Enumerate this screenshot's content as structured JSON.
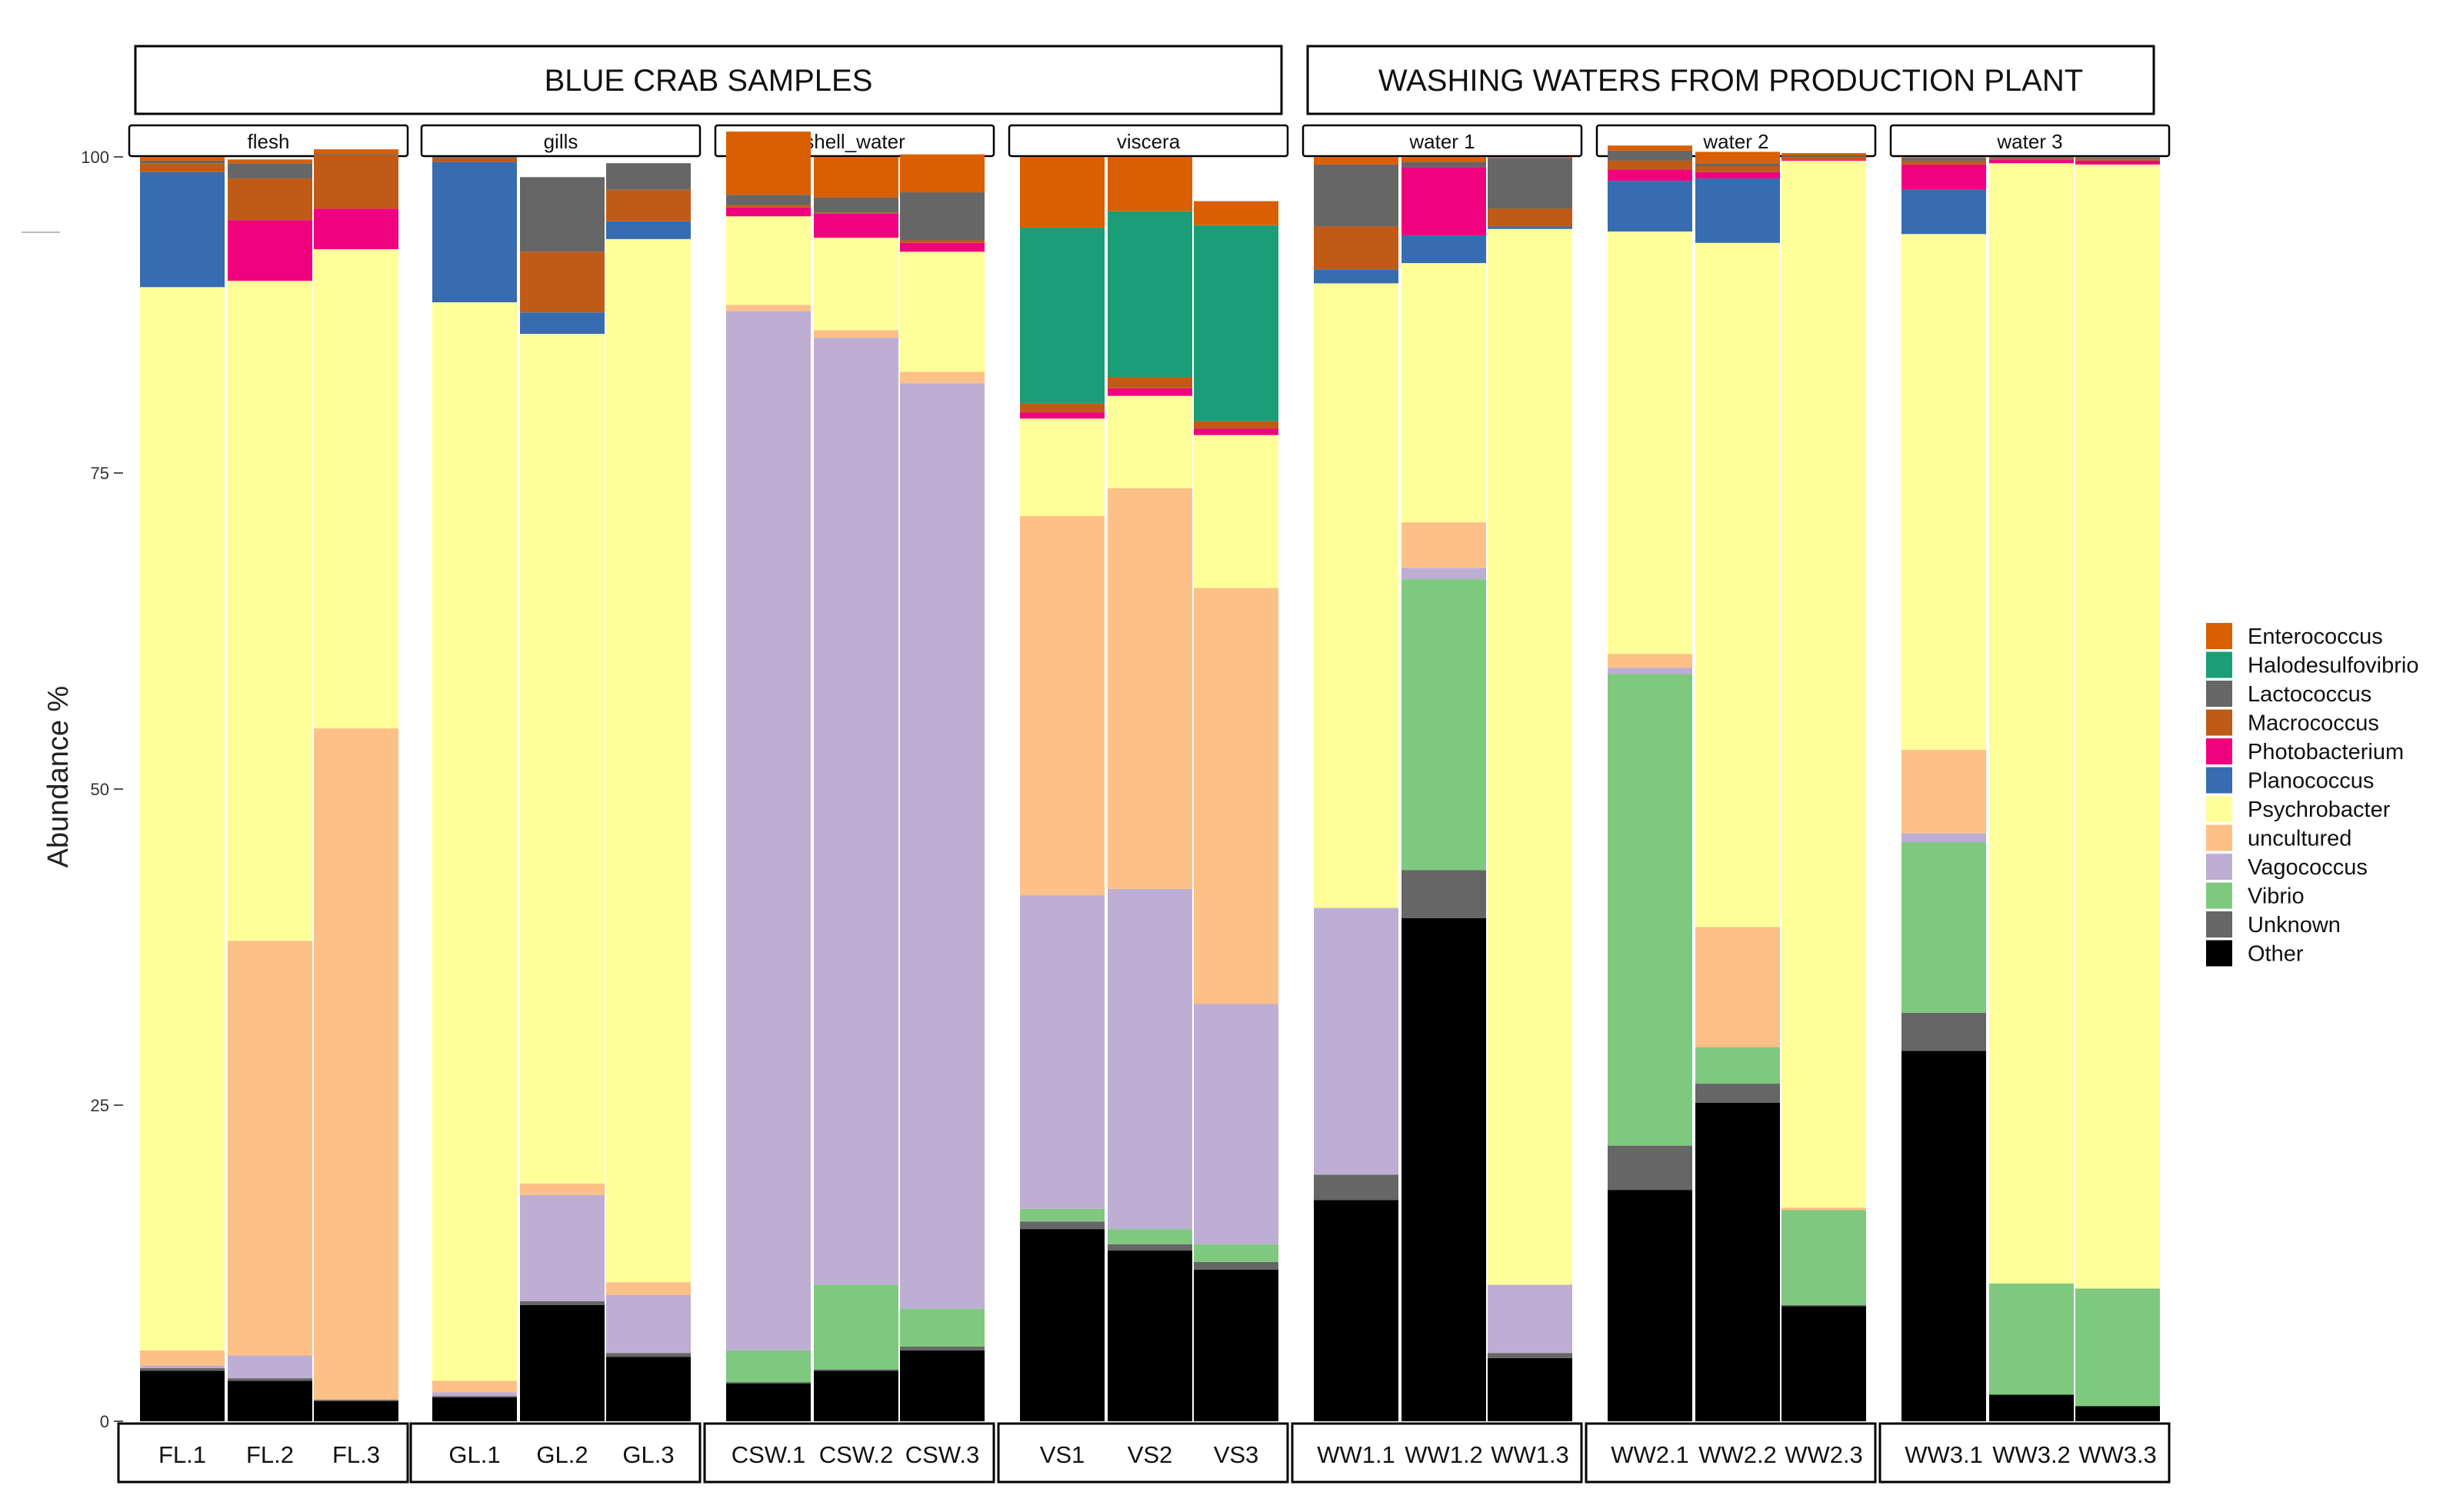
{
  "chart_data": {
    "type": "bar",
    "stacked": true,
    "title": "",
    "xlabel": "",
    "ylabel": "Abundance %",
    "ylim": [
      0,
      100
    ],
    "yticks": [
      0,
      25,
      50,
      75,
      100
    ],
    "groups": [
      {
        "label": "BLUE CRAB  SAMPLES",
        "panels": [
          "flesh",
          "gills",
          "shell_water",
          "viscera"
        ]
      },
      {
        "label": "WASHING WATERS FROM PRODUCTION PLANT",
        "panels": [
          "water 1",
          "water 2",
          "water 3"
        ]
      }
    ],
    "panels": [
      {
        "name": "flesh",
        "samples": [
          "FL.1",
          "FL.2",
          "FL.3"
        ]
      },
      {
        "name": "gills",
        "samples": [
          "GL.1",
          "GL.2",
          "GL.3"
        ]
      },
      {
        "name": "shell_water",
        "samples": [
          "CSW.1",
          "CSW.2",
          "CSW.3"
        ]
      },
      {
        "name": "viscera",
        "samples": [
          "VS1",
          "VS2",
          "VS3"
        ]
      },
      {
        "name": "water 1",
        "samples": [
          "WW1.1",
          "WW1.2",
          "WW1.3"
        ]
      },
      {
        "name": "water 2",
        "samples": [
          "WW2.1",
          "WW2.2",
          "WW2.3"
        ]
      },
      {
        "name": "water 3",
        "samples": [
          "WW3.1",
          "WW3.2",
          "WW3.3"
        ]
      }
    ],
    "categories": [
      "FL.1",
      "FL.2",
      "FL.3",
      "GL.1",
      "GL.2",
      "GL.3",
      "CSW.1",
      "CSW.2",
      "CSW.3",
      "VS1",
      "VS2",
      "VS3",
      "WW1.1",
      "WW1.2",
      "WW1.3",
      "WW2.1",
      "WW2.2",
      "WW2.3",
      "WW3.1",
      "WW3.2",
      "WW3.3"
    ],
    "legend_position": "right",
    "series": [
      {
        "name": "Other",
        "color": "#000000",
        "values": [
          4.0,
          3.2,
          1.6,
          1.9,
          9.2,
          5.1,
          3.0,
          4.0,
          5.6,
          15.2,
          13.5,
          12.0,
          17.5,
          39.8,
          5.0,
          18.3,
          25.2,
          9.1,
          29.3,
          2.1,
          1.2
        ]
      },
      {
        "name": "Unknown",
        "color": "#666666",
        "values": [
          0.2,
          0.2,
          0.1,
          0.1,
          0.3,
          0.3,
          0.1,
          0.1,
          0.3,
          0.6,
          0.5,
          0.6,
          2.0,
          3.8,
          0.4,
          3.5,
          1.5,
          0.1,
          3.0,
          0.0,
          0.0
        ]
      },
      {
        "name": "Vibrio",
        "color": "#7FC97F",
        "values": [
          0,
          0,
          0,
          0,
          0,
          0,
          2.5,
          6.7,
          3.0,
          1.0,
          1.2,
          1.4,
          0,
          23.0,
          0,
          37.3,
          2.9,
          7.5,
          13.5,
          8.8,
          9.3
        ]
      },
      {
        "name": "Vagococcus",
        "color": "#BEAED4",
        "values": [
          0.2,
          1.8,
          0,
          0.3,
          8.4,
          4.6,
          82.2,
          74.9,
          73.2,
          24.8,
          26.9,
          19.0,
          21.1,
          0.9,
          5.4,
          0.5,
          0,
          0,
          0.7,
          0,
          0
        ]
      },
      {
        "name": "uncultured",
        "color": "#FDC086",
        "values": [
          1.2,
          32.8,
          53.1,
          0.9,
          0.9,
          1.0,
          0.5,
          0.6,
          0.9,
          30.0,
          31.7,
          32.9,
          0,
          3.6,
          0,
          1.1,
          9.5,
          0.2,
          6.6,
          0,
          0
        ]
      },
      {
        "name": "Psychrobacter",
        "color": "#FFFF99",
        "values": [
          84.1,
          52.2,
          37.9,
          85.3,
          67.2,
          82.5,
          7.0,
          7.3,
          9.5,
          7.7,
          7.3,
          12.1,
          49.4,
          20.5,
          83.5,
          33.4,
          54.1,
          82.8,
          40.8,
          88.6,
          88.9
        ]
      },
      {
        "name": "Planococcus",
        "color": "#386CB0",
        "values": [
          9.1,
          0,
          0,
          11.1,
          1.7,
          1.4,
          0,
          0,
          0,
          0,
          0,
          0,
          1.1,
          2.2,
          0.2,
          4.0,
          5.1,
          0,
          3.5,
          0,
          0
        ]
      },
      {
        "name": "Photobacterium",
        "color": "#F0027F",
        "values": [
          0,
          4.8,
          3.2,
          0,
          0,
          0,
          0.7,
          1.9,
          0.7,
          0.5,
          0.6,
          0.5,
          0,
          5.4,
          0,
          0.9,
          0.5,
          0.1,
          2.0,
          0.3,
          0.3
        ]
      },
      {
        "name": "Macrococcus",
        "color": "#BF5B17",
        "values": [
          0.7,
          3.3,
          4.3,
          0.3,
          4.8,
          2.5,
          0.2,
          0.1,
          0.2,
          0.7,
          0.9,
          0.6,
          3.4,
          0,
          1.4,
          0.7,
          0.5,
          0.2,
          0.3,
          0.1,
          0.1
        ]
      },
      {
        "name": "Lactococcus",
        "color": "#666666",
        "values": [
          0.2,
          1.2,
          0.1,
          0.1,
          5.9,
          2.1,
          0.8,
          1.2,
          3.8,
          0,
          0,
          0,
          4.9,
          0.4,
          4.0,
          0.8,
          0.2,
          0.1,
          0.2,
          0.1,
          0.1
        ]
      },
      {
        "name": "Halodesulfovibrio",
        "color": "#1B9E77",
        "values": [
          0,
          0,
          0,
          0,
          0,
          0,
          0,
          0,
          0,
          13.9,
          13.1,
          15.5,
          0,
          0,
          0,
          0,
          0,
          0,
          0,
          0,
          0
        ]
      },
      {
        "name": "Enterococcus",
        "color": "#D95F02",
        "values": [
          0.3,
          0.3,
          0.3,
          0,
          0,
          0,
          5.0,
          3.2,
          3.0,
          5.6,
          4.3,
          1.9,
          0.6,
          0.4,
          0.1,
          0.4,
          0.9,
          0.2,
          0.1,
          0.0,
          0.1
        ]
      }
    ]
  }
}
